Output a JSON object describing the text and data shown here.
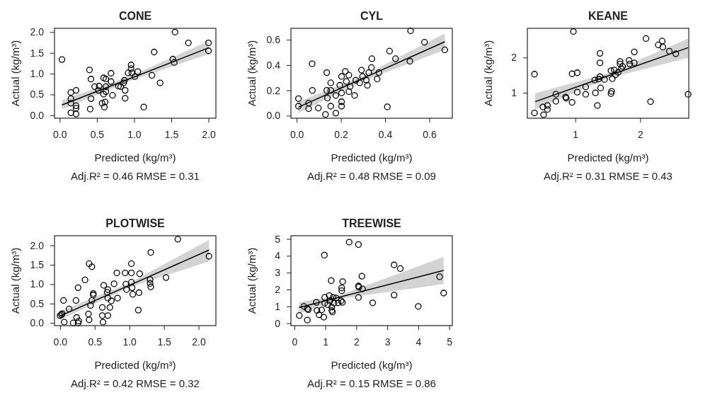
{
  "chart_data": [
    {
      "type": "scatter",
      "title": "CONE",
      "xlabel": "Predicted (kg/m³)",
      "ylabel": "Actual (kg/m³)",
      "annotations": [
        "Adj.R² = 0.46  RMSE = 0.31"
      ],
      "xlim": [
        -0.07,
        2.1
      ],
      "ylim": [
        -0.07,
        2.09
      ],
      "xticks": [
        {
          "value": 0,
          "label": "0.0"
        },
        {
          "value": 0.5,
          "label": "0.5"
        },
        {
          "value": 1,
          "label": "1.0"
        },
        {
          "value": 1.5,
          "label": "1.5"
        },
        {
          "value": 2,
          "label": "2.0"
        }
      ],
      "yticks": [
        {
          "value": 0,
          "label": "0.0"
        },
        {
          "value": 0.5,
          "label": "0.5"
        },
        {
          "value": 1,
          "label": "1.0"
        },
        {
          "value": 1.5,
          "label": "1.5"
        },
        {
          "value": 2,
          "label": "2.0"
        }
      ],
      "series": [
        {
          "marker": "circle",
          "color": "#000000",
          "x": [
            0.03,
            0.15,
            0.15,
            0.15,
            0.15,
            0.22,
            0.22,
            0.22,
            0.22,
            0.4,
            0.42,
            0.42,
            0.41,
            0.47,
            0.52,
            0.53,
            0.57,
            0.59,
            0.59,
            0.62,
            0.6,
            0.61,
            0.62,
            0.62,
            0.69,
            0.71,
            0.69,
            0.79,
            0.82,
            0.86,
            0.87,
            0.88,
            0.88,
            0.92,
            0.96,
            0.96,
            0.97,
            1.01,
            1.05,
            1.13,
            1.24,
            1.27,
            1.35,
            1.52,
            1.54,
            1.55,
            1.73,
            2.0,
            2.0
          ],
          "values": [
            1.34,
            0.55,
            0.4,
            0.29,
            0.06,
            0.6,
            0.23,
            0.17,
            0.03,
            1.09,
            0.87,
            0.4,
            0.15,
            0.69,
            0.6,
            0.7,
            0.29,
            0.51,
            0.9,
            0.87,
            0.2,
            0.32,
            0.57,
            0.69,
            1.01,
            0.48,
            0.81,
            0.7,
            0.69,
            0.78,
            0.84,
            0.6,
            0.41,
            1.02,
            1.21,
            1.12,
            1.02,
            0.93,
            1.05,
            0.2,
            0.96,
            1.52,
            0.78,
            1.35,
            1.27,
            2.0,
            1.74,
            1.74,
            1.55
          ]
        },
        {
          "type": "line",
          "marker": "none",
          "color": "#000000",
          "x": [
            0.03,
            1.0,
            2.0
          ],
          "values": [
            0.25,
            0.92,
            1.62
          ],
          "lower": [
            0.14,
            0.86,
            1.47
          ],
          "upper": [
            0.36,
            0.98,
            1.78
          ]
        }
      ]
    },
    {
      "type": "scatter",
      "title": "CYL",
      "xlabel": "Predicted (kg/m³)",
      "ylabel": "Actual (kg/m³)",
      "annotations": [
        "Adj.R² = 0.48  RMSE = 0.09"
      ],
      "xlim": [
        -0.026,
        0.704
      ],
      "ylim": [
        -0.02,
        0.69
      ],
      "xticks": [
        {
          "value": 0,
          "label": "0.0"
        },
        {
          "value": 0.2,
          "label": "0.2"
        },
        {
          "value": 0.4,
          "label": "0.4"
        },
        {
          "value": 0.6,
          "label": "0.6"
        }
      ],
      "yticks": [
        {
          "value": 0,
          "label": "0.0"
        },
        {
          "value": 0.2,
          "label": "0.2"
        },
        {
          "value": 0.4,
          "label": "0.4"
        },
        {
          "value": 0.6,
          "label": "0.6"
        }
      ],
      "series": [
        {
          "marker": "circle",
          "color": "#000000",
          "x": [
            0.008,
            0.008,
            0.054,
            0.054,
            0.07,
            0.071,
            0.098,
            0.13,
            0.136,
            0.136,
            0.139,
            0.154,
            0.154,
            0.154,
            0.177,
            0.177,
            0.195,
            0.203,
            0.203,
            0.203,
            0.203,
            0.22,
            0.225,
            0.236,
            0.236,
            0.242,
            0.262,
            0.267,
            0.285,
            0.293,
            0.298,
            0.315,
            0.32,
            0.326,
            0.338,
            0.34,
            0.364,
            0.372,
            0.41,
            0.42,
            0.447,
            0.512,
            0.515,
            0.578,
            0.67
          ],
          "values": [
            0.135,
            0.075,
            0.1,
            0.055,
            0.41,
            0.2,
            0.06,
            0.01,
            0.34,
            0.2,
            0.14,
            0.26,
            0.075,
            0.2,
            0.02,
            0.16,
            0.24,
            0.31,
            0.18,
            0.11,
            0.075,
            0.35,
            0.27,
            0.32,
            0.19,
            0.23,
            0.16,
            0.28,
            0.26,
            0.36,
            0.31,
            0.28,
            0.24,
            0.34,
            0.38,
            0.45,
            0.29,
            0.34,
            0.07,
            0.51,
            0.45,
            0.43,
            0.67,
            0.58,
            0.52
          ]
        },
        {
          "type": "line",
          "marker": "none",
          "color": "#000000",
          "x": [
            0.008,
            0.3,
            0.67
          ],
          "values": [
            0.067,
            0.295,
            0.584
          ],
          "lower": [
            0.02,
            0.275,
            0.52
          ],
          "upper": [
            0.11,
            0.315,
            0.65
          ]
        }
      ]
    },
    {
      "type": "scatter",
      "title": "KEANE",
      "xlabel": "Predicted (kg/m³)",
      "ylabel": "Actual (kg/m³)",
      "annotations": [
        "Adj.R² = 0.31  RMSE = 0.43"
      ],
      "xlim": [
        0.26,
        2.75
      ],
      "ylim": [
        0.28,
        2.83
      ],
      "xticks": [
        1,
        2
      ],
      "yticks": [
        1,
        2
      ],
      "series": [
        {
          "marker": "circle",
          "color": "#000000",
          "x": [
            0.37,
            0.37,
            0.5,
            0.51,
            0.57,
            0.57,
            0.7,
            0.7,
            0.85,
            0.86,
            0.95,
            0.95,
            0.97,
            1.03,
            1.03,
            1.16,
            1.16,
            1.3,
            1.31,
            1.34,
            1.36,
            1.38,
            1.38,
            1.38,
            1.39,
            1.45,
            1.55,
            1.56,
            1.55,
            1.57,
            1.6,
            1.62,
            1.66,
            1.69,
            1.69,
            1.71,
            1.73,
            1.83,
            1.84,
            1.91,
            1.91,
            2.09,
            2.16,
            2.28,
            2.34,
            2.35,
            2.45,
            2.55,
            2.74
          ],
          "values": [
            0.43,
            1.53,
            0.6,
            0.38,
            0.64,
            0.53,
            0.96,
            0.76,
            0.88,
            0.85,
            0.73,
            1.54,
            2.74,
            1.57,
            1.02,
            1.17,
            0.96,
            1.36,
            1.0,
            0.64,
            1.39,
            2.12,
            1.85,
            1.46,
            1.14,
            1.38,
            0.98,
            1.04,
            1.63,
            1.4,
            1.65,
            1.51,
            1.58,
            1.89,
            1.82,
            1.69,
            1.75,
            1.92,
            1.82,
            1.85,
            2.16,
            2.54,
            0.75,
            2.36,
            2.47,
            2.3,
            2.18,
            2.11,
            0.96
          ]
        },
        {
          "type": "line",
          "marker": "none",
          "color": "#000000",
          "x": [
            0.38,
            1.5,
            2.74
          ],
          "values": [
            0.75,
            1.48,
            2.28
          ],
          "lower": [
            0.53,
            1.41,
            1.99
          ],
          "upper": [
            0.99,
            1.55,
            2.54
          ]
        }
      ]
    },
    {
      "type": "scatter",
      "title": "PLOTWISE",
      "xlabel": "Predicted (kg/m³)",
      "ylabel": "Actual (kg/m³)",
      "annotations": [
        "Adj.R² = 0.42  RMSE = 0.32"
      ],
      "xlim": [
        -0.08,
        2.25
      ],
      "ylim": [
        -0.07,
        2.25
      ],
      "xticks": [
        {
          "value": 0,
          "label": "0.0"
        },
        {
          "value": 0.5,
          "label": "0.5"
        },
        {
          "value": 1,
          "label": "1.0"
        },
        {
          "value": 1.5,
          "label": "1.5"
        },
        {
          "value": 2,
          "label": "2.0"
        }
      ],
      "yticks": [
        {
          "value": 0,
          "label": "0.0"
        },
        {
          "value": 0.5,
          "label": "0.5"
        },
        {
          "value": 1,
          "label": "1.0"
        },
        {
          "value": 1.5,
          "label": "1.5"
        },
        {
          "value": 2,
          "label": "2.0"
        }
      ],
      "series": [
        {
          "marker": "circle",
          "color": "#000000",
          "x": [
            0.0,
            0.02,
            0.03,
            0.05,
            0.06,
            0.13,
            0.23,
            0.26,
            0.19,
            0.24,
            0.26,
            0.27,
            0.36,
            0.42,
            0.46,
            0.41,
            0.42,
            0.44,
            0.46,
            0.48,
            0.48,
            0.61,
            0.61,
            0.62,
            0.63,
            0.68,
            0.69,
            0.69,
            0.69,
            0.72,
            0.74,
            0.78,
            0.82,
            0.83,
            0.94,
            0.95,
            0.96,
            1.03,
            1.03,
            1.03,
            1.04,
            1.05,
            1.13,
            1.14,
            1.15,
            1.31,
            1.3,
            1.3,
            1.31,
            1.53,
            1.7,
            2.15
          ],
          "values": [
            0.19,
            0.21,
            0.24,
            0.58,
            0.02,
            0.36,
            0.58,
            0.91,
            0.0,
            0.14,
            0.0,
            0.05,
            1.11,
            1.53,
            1.45,
            0.23,
            0.08,
            0.45,
            0.58,
            0.72,
            0.76,
            0.4,
            0.19,
            0.02,
            0.97,
            0.79,
            0.86,
            0.64,
            0.19,
            0.4,
            0.57,
            1.01,
            1.29,
            0.64,
            1.29,
            1.0,
            0.86,
            1.53,
            1.29,
            1.05,
            0.91,
            0.74,
            0.33,
            0.78,
            1.27,
            1.82,
            1.12,
            1.02,
            0.93,
            1.17,
            2.16,
            1.72
          ]
        },
        {
          "type": "line",
          "marker": "none",
          "color": "#000000",
          "x": [
            0.0,
            1.0,
            2.15
          ],
          "values": [
            0.18,
            0.97,
            1.88
          ],
          "lower": [
            0.08,
            0.91,
            1.59
          ],
          "upper": [
            0.3,
            1.03,
            2.14
          ]
        }
      ]
    },
    {
      "type": "scatter",
      "title": "TREEWISE",
      "xlabel": "Predicted (kg/m³)",
      "ylabel": "Actual (kg/m³)",
      "annotations": [
        "Adj.R² = 0.15  RMSE = 0.86"
      ],
      "xlim": [
        -0.11,
        5.1
      ],
      "ylim": [
        -0.14,
        5.19
      ],
      "xticks": [
        0,
        1,
        2,
        3,
        4,
        5
      ],
      "yticks": [
        0,
        1,
        2,
        3,
        4,
        5
      ],
      "series": [
        {
          "marker": "circle",
          "color": "#000000",
          "x": [
            0.16,
            0.31,
            0.42,
            0.42,
            0.45,
            0.71,
            0.73,
            0.8,
            0.88,
            0.95,
            0.97,
            0.98,
            0.98,
            1.08,
            1.13,
            1.15,
            1.19,
            1.21,
            1.21,
            1.23,
            1.25,
            1.28,
            1.35,
            1.41,
            1.51,
            1.53,
            1.53,
            1.56,
            1.55,
            1.77,
            2.07,
            2.07,
            2.08,
            2.07,
            2.18,
            2.2,
            2.53,
            3.22,
            3.42,
            3.22,
            4.0,
            4.69,
            4.82
          ],
          "values": [
            0.46,
            1.0,
            0.86,
            0.19,
            0.81,
            1.24,
            0.76,
            0.5,
            0.79,
            0.36,
            4.04,
            1.53,
            1.19,
            1.1,
            1.64,
            1.33,
            2.53,
            0.96,
            0.76,
            0.67,
            1.53,
            1.19,
            1.5,
            1.21,
            1.33,
            1.93,
            2.1,
            2.47,
            1.24,
            4.81,
            4.67,
            2.21,
            2.14,
            1.53,
            2.79,
            2.04,
            1.21,
            3.46,
            3.24,
            1.67,
            1.0,
            2.76,
            1.79
          ]
        },
        {
          "type": "line",
          "marker": "none",
          "color": "#000000",
          "x": [
            0.15,
            1.5,
            4.82
          ],
          "values": [
            0.93,
            1.57,
            3.13
          ],
          "lower": [
            0.57,
            1.45,
            2.33
          ],
          "upper": [
            1.24,
            1.69,
            3.93
          ]
        }
      ]
    }
  ]
}
